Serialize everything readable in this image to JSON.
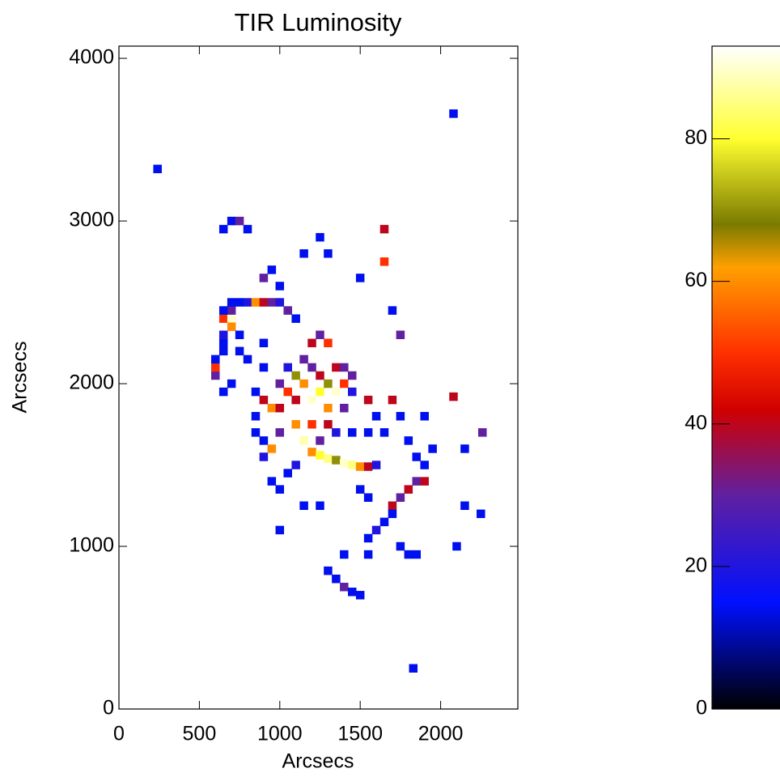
{
  "chart_data": [
    {
      "type": "heatmap",
      "title": "TIR Luminosity",
      "xlabel": "Arcsecs",
      "ylabel": "Arcsecs",
      "x": [
        600,
        600,
        600,
        650,
        650,
        650,
        650,
        700,
        700,
        700,
        650,
        700,
        750,
        800,
        850,
        900,
        950,
        1000,
        1050,
        1100,
        750,
        750,
        800,
        650,
        700,
        700,
        750,
        800,
        650,
        950,
        900,
        1000,
        1150,
        1300,
        1250,
        1500,
        1650,
        1650,
        1700,
        1750,
        900,
        900,
        850,
        900,
        950,
        850,
        850,
        900,
        900,
        950,
        1000,
        1000,
        1000,
        1050,
        1050,
        1100,
        1100,
        1100,
        1150,
        1150,
        1150,
        1200,
        1250,
        1300,
        1200,
        1200,
        1250,
        1250,
        1300,
        1300,
        1350,
        1350,
        1400,
        1400,
        1400,
        1450,
        1450,
        1300,
        1350,
        1200,
        1250,
        1200,
        1250,
        1300,
        1350,
        1400,
        1450,
        1500,
        1550,
        1600,
        1100,
        1050,
        950,
        1000,
        1150,
        1250,
        1550,
        1600,
        1650,
        1700,
        1750,
        1800,
        1850,
        1900,
        1850,
        1800,
        1750,
        1900,
        1950,
        1900,
        1550,
        1450,
        1500,
        1550,
        1700,
        1700,
        1650,
        1600,
        1550,
        1550,
        1750,
        1800,
        1850,
        1300,
        1350,
        1400,
        1450,
        1500,
        1400,
        2080,
        240,
        2260,
        2080,
        1830,
        2100,
        2150,
        2250,
        2150,
        1000
      ],
      "y": [
        2050,
        2100,
        2150,
        2200,
        2250,
        2300,
        2400,
        2400,
        2350,
        2450,
        2450,
        2500,
        2500,
        2500,
        2500,
        2500,
        2500,
        2500,
        2450,
        2400,
        2300,
        2200,
        2150,
        1950,
        2000,
        3000,
        3000,
        2950,
        2950,
        2700,
        2650,
        2600,
        2800,
        2800,
        2900,
        2650,
        2950,
        2750,
        2450,
        2300,
        2250,
        2100,
        1950,
        1900,
        1850,
        1800,
        1700,
        1650,
        1550,
        1600,
        1700,
        1850,
        2000,
        2100,
        1950,
        2050,
        1900,
        1750,
        1650,
        2000,
        2150,
        2250,
        2300,
        2250,
        2100,
        1900,
        1950,
        2050,
        1850,
        2000,
        2100,
        1950,
        2000,
        2100,
        1850,
        2050,
        1950,
        1750,
        1700,
        1750,
        1650,
        1580,
        1560,
        1540,
        1530,
        1510,
        1500,
        1490,
        1490,
        1500,
        1500,
        1450,
        1400,
        1350,
        1250,
        1250,
        1900,
        1800,
        1700,
        1900,
        1800,
        1650,
        1550,
        1500,
        1400,
        1350,
        1300,
        1400,
        1600,
        1800,
        1700,
        1700,
        1350,
        1300,
        1250,
        1200,
        1150,
        1100,
        1050,
        950,
        1000,
        950,
        950,
        850,
        800,
        750,
        720,
        700,
        950,
        3660,
        3320,
        1700,
        1920,
        250,
        1000,
        1250,
        1200,
        1600,
        1100
      ],
      "values": [
        30,
        50,
        14,
        14,
        14,
        20,
        50,
        90,
        60,
        30,
        14,
        14,
        14,
        20,
        60,
        40,
        30,
        20,
        30,
        14,
        14,
        14,
        14,
        14,
        14,
        14,
        30,
        14,
        14,
        14,
        30,
        14,
        14,
        14,
        14,
        14,
        40,
        50,
        14,
        30,
        14,
        14,
        14,
        40,
        60,
        14,
        14,
        14,
        20,
        60,
        30,
        40,
        30,
        20,
        50,
        70,
        40,
        60,
        88,
        60,
        30,
        40,
        30,
        50,
        30,
        90,
        80,
        40,
        60,
        70,
        40,
        90,
        50,
        30,
        30,
        30,
        20,
        40,
        20,
        50,
        30,
        60,
        80,
        85,
        70,
        90,
        85,
        60,
        40,
        20,
        20,
        14,
        14,
        14,
        14,
        14,
        40,
        14,
        14,
        40,
        14,
        14,
        14,
        14,
        30,
        40,
        30,
        40,
        14,
        14,
        14,
        14,
        14,
        14,
        40,
        14,
        14,
        20,
        14,
        14,
        14,
        14,
        14,
        14,
        14,
        30,
        14,
        14,
        14,
        14,
        14,
        30,
        40,
        14,
        14,
        14,
        14,
        14,
        14
      ],
      "xlim": [
        0,
        2480
      ],
      "ylim": [
        0,
        4075
      ],
      "xticks": [
        0,
        500,
        1000,
        1500,
        2000
      ],
      "yticks": [
        0,
        1000,
        2000,
        3000,
        4000
      ]
    },
    {
      "type": "colorbar",
      "ylim": [
        0,
        93
      ],
      "yticks": [
        0,
        20,
        40,
        60,
        80
      ],
      "colorscale": {
        "values": [
          0,
          15,
          30,
          42,
          50,
          62,
          68,
          80,
          93
        ],
        "colors": [
          "#000000",
          "#0010ff",
          "#6020a0",
          "#d00000",
          "#ff3000",
          "#ffa000",
          "#7a7a00",
          "#ffff30",
          "#ffffff"
        ]
      }
    }
  ]
}
